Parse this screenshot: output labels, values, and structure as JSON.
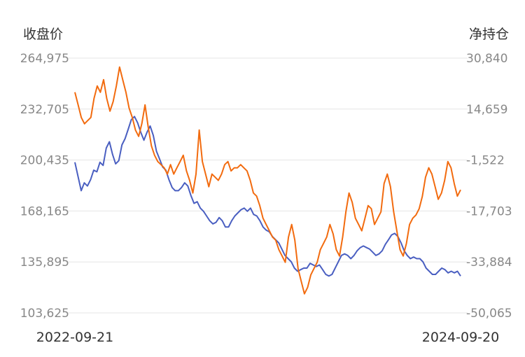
{
  "chart_data": {
    "type": "line",
    "title": "",
    "left_axis_label": "收盘价",
    "right_axis_label": "净持仓",
    "left_ylim": [
      103625,
      264975
    ],
    "right_ylim": [
      -50065,
      30840
    ],
    "left_ticks": [
      "264,975",
      "232,705",
      "200,435",
      "168,165",
      "135,895",
      "103,625"
    ],
    "right_ticks": [
      "30,840",
      "14,659",
      "-1,522",
      "-17,703",
      "-33,884",
      "-50,065"
    ],
    "x_start_label": "2022-09-21",
    "x_end_label": "2024-09-20",
    "grid": true,
    "series": [
      {
        "name": "",
        "axis": "left",
        "color": "#4a5fc1",
        "values": [
          199000,
          190000,
          181000,
          186000,
          184000,
          188000,
          194000,
          193000,
          199000,
          197000,
          208000,
          212000,
          204000,
          198000,
          200000,
          210000,
          214000,
          220000,
          226000,
          228000,
          224000,
          218000,
          213000,
          218000,
          222000,
          216000,
          206000,
          201000,
          196000,
          194000,
          188000,
          183000,
          181000,
          181000,
          183000,
          186000,
          184000,
          178000,
          173000,
          174000,
          170000,
          168000,
          165000,
          162000,
          160000,
          161000,
          164000,
          162000,
          158000,
          158000,
          162000,
          165000,
          167000,
          169000,
          170000,
          168000,
          170000,
          166000,
          165000,
          162000,
          158000,
          156000,
          155000,
          152000,
          150000,
          148000,
          144000,
          140000,
          138000,
          136000,
          132000,
          130000,
          131000,
          132000,
          132000,
          135000,
          134000,
          133000,
          134000,
          131000,
          128000,
          127000,
          128000,
          132000,
          136000,
          140000,
          141000,
          140000,
          138000,
          140000,
          143000,
          145000,
          146000,
          145000,
          144000,
          142000,
          140000,
          141000,
          143000,
          147000,
          150000,
          153000,
          154000,
          152000,
          148000,
          143000,
          140000,
          138000,
          139000,
          138000,
          138000,
          136000,
          132000,
          130000,
          128000,
          128000,
          130000,
          132000,
          131000,
          129000,
          130000,
          129000,
          130000,
          127000
        ]
      },
      {
        "name": "",
        "axis": "right",
        "color": "#f26b0f",
        "values": [
          20000,
          16000,
          12000,
          10000,
          11000,
          12000,
          18000,
          22000,
          20000,
          24000,
          18000,
          14000,
          17000,
          22000,
          28000,
          24000,
          20000,
          15000,
          12000,
          8000,
          6000,
          10000,
          16000,
          9000,
          3000,
          0,
          -2000,
          -3000,
          -4000,
          -6000,
          -3000,
          -6000,
          -4000,
          -2000,
          0,
          -5000,
          -8000,
          -12000,
          -6000,
          8000,
          -2000,
          -6000,
          -10000,
          -6000,
          -7000,
          -8000,
          -6000,
          -3000,
          -2000,
          -5000,
          -4000,
          -4000,
          -3000,
          -4000,
          -5000,
          -8000,
          -12000,
          -13000,
          -16000,
          -20000,
          -22000,
          -24000,
          -26000,
          -27000,
          -30000,
          -32000,
          -34000,
          -26000,
          -22000,
          -27000,
          -36000,
          -40000,
          -44000,
          -42000,
          -38000,
          -36000,
          -34000,
          -30000,
          -28000,
          -26000,
          -22000,
          -25000,
          -30000,
          -32000,
          -26000,
          -18000,
          -12000,
          -15000,
          -20000,
          -22000,
          -24000,
          -20000,
          -16000,
          -17000,
          -22000,
          -20000,
          -18000,
          -9000,
          -6000,
          -10000,
          -18000,
          -24000,
          -30000,
          -32000,
          -28000,
          -22000,
          -20000,
          -19000,
          -17000,
          -13000,
          -7000,
          -4000,
          -6000,
          -10000,
          -14000,
          -12000,
          -8000,
          -2000,
          -4000,
          -9000,
          -13000,
          -11000
        ]
      }
    ]
  }
}
